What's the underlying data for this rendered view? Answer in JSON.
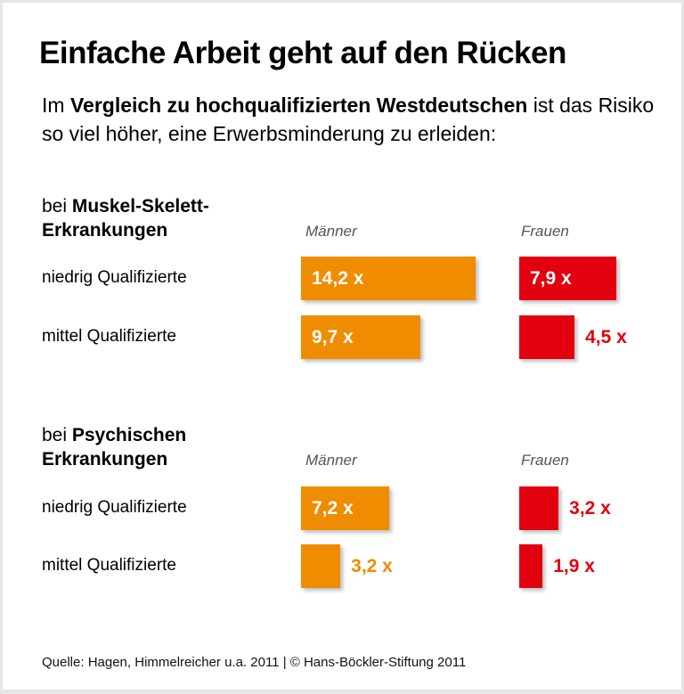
{
  "title": "Einfache Arbeit geht auf den Rücken",
  "subtitle": {
    "pre": "Im ",
    "bold": "Vergleich zu hochqualifizierten Westdeutschen",
    "post": " ist das Risiko so viel höher, eine Erwerbsminderung zu erleiden:"
  },
  "colors": {
    "maenner": "#f08c00",
    "frauen": "#e2000f"
  },
  "footer": "Quelle: Hagen, Himmelreicher u.a. 2011 | © Hans-Böckler-Stiftung 2011",
  "chart_data": {
    "type": "bar",
    "orientation": "horizontal",
    "unit": "x",
    "groups": [
      {
        "title_pre": "bei ",
        "title_bold": "Muskel-Skelett-",
        "title_line2": "Erkrankungen",
        "categories": [
          "niedrig Qualifizierte",
          "mittel Qualifizierte"
        ],
        "series": [
          {
            "name": "Männer",
            "values": [
              14.2,
              9.7
            ],
            "labels": [
              "14,2 x",
              "9,7 x"
            ]
          },
          {
            "name": "Frauen",
            "values": [
              7.9,
              4.5
            ],
            "labels": [
              "7,9 x",
              "4,5 x"
            ]
          }
        ]
      },
      {
        "title_pre": "bei ",
        "title_bold": "Psychischen",
        "title_line2": "Erkrankungen",
        "categories": [
          "niedrig Qualifizierte",
          "mittel Qualifizierte"
        ],
        "series": [
          {
            "name": "Männer",
            "values": [
              7.2,
              3.2
            ],
            "labels": [
              "7,2 x",
              "3,2 x"
            ]
          },
          {
            "name": "Frauen",
            "values": [
              3.2,
              1.9
            ],
            "labels": [
              "3,2 x",
              "1,9 x"
            ]
          }
        ]
      }
    ]
  }
}
